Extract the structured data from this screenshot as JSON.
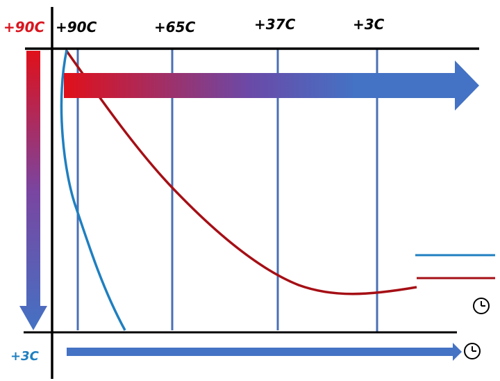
{
  "labels": {
    "temp_high_left": "+90C",
    "temp_low_left": "+3C",
    "top_1": "+90C",
    "top_2": "+65C",
    "top_3": "+37C",
    "top_4": "+3C"
  },
  "colors": {
    "red": "#d9151e",
    "blue": "#4472c4",
    "dark_red": "#a50f15",
    "light_blue": "#1f7fc0",
    "axis": "#000000",
    "label_red": "#d9151e",
    "label_blue": "#1f7fc0"
  },
  "icons": {
    "right_icon": "clock-icon",
    "bottom_icon": "clock-icon"
  }
}
